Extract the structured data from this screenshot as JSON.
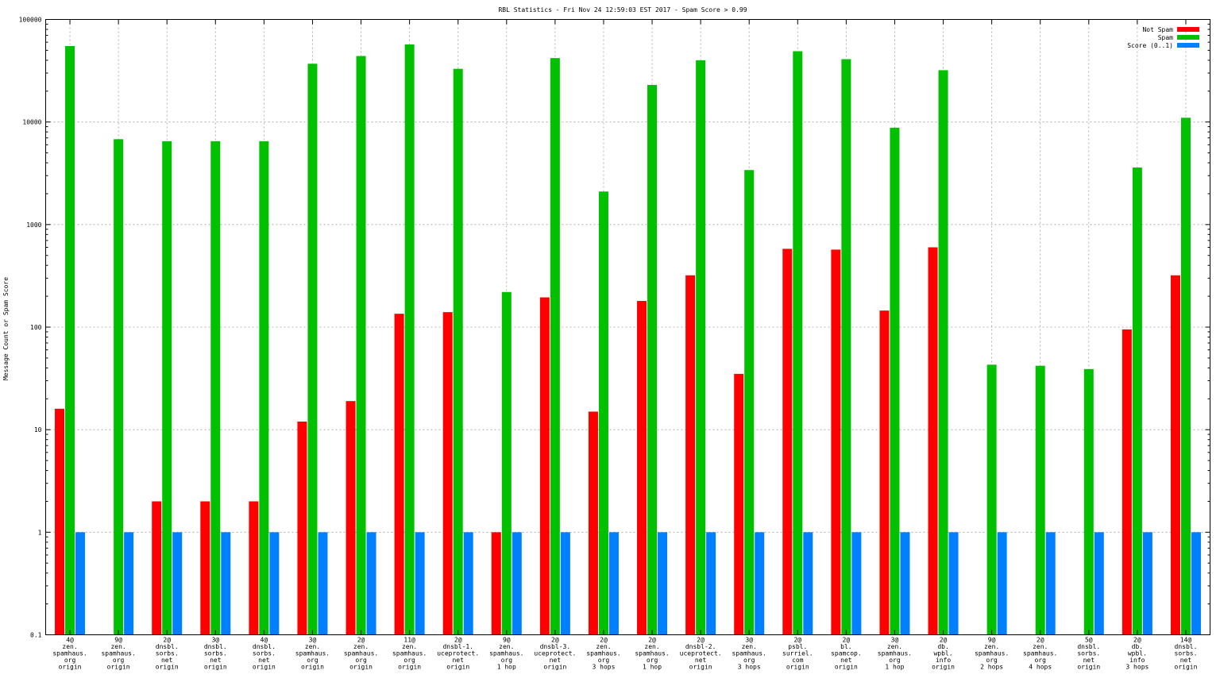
{
  "chart_data": {
    "type": "bar",
    "title": "RBL Statistics - Fri Nov 24 12:59:03 EST 2017 - Spam Score > 0.99",
    "xlabel": "",
    "ylabel": "Message Count or Spam Score",
    "yscale": "log",
    "ylim": [
      0.1,
      100000
    ],
    "grid": true,
    "legend_position": "top-right",
    "y_tick_labels": [
      "0.1",
      "1",
      "10",
      "100",
      "1000",
      "10000",
      "100000"
    ],
    "categories": [
      [
        "4@",
        "zen.",
        "spamhaus.",
        "org",
        "origin"
      ],
      [
        "9@",
        "zen.",
        "spamhaus.",
        "org",
        "origin"
      ],
      [
        "2@",
        "dnsbl.",
        "sorbs.",
        "net",
        "origin"
      ],
      [
        "3@",
        "dnsbl.",
        "sorbs.",
        "net",
        "origin"
      ],
      [
        "4@",
        "dnsbl.",
        "sorbs.",
        "net",
        "origin"
      ],
      [
        "3@",
        "zen.",
        "spamhaus.",
        "org",
        "origin"
      ],
      [
        "2@",
        "zen.",
        "spamhaus.",
        "org",
        "origin"
      ],
      [
        "11@",
        "zen.",
        "spamhaus.",
        "org",
        "origin"
      ],
      [
        "2@",
        "dnsbl-1.",
        "uceprotect.",
        "net",
        "origin"
      ],
      [
        "9@",
        "zen.",
        "spamhaus.",
        "org",
        "1 hop"
      ],
      [
        "2@",
        "dnsbl-3.",
        "uceprotect.",
        "net",
        "origin"
      ],
      [
        "2@",
        "zen.",
        "spamhaus.",
        "org",
        "3 hops"
      ],
      [
        "2@",
        "zen.",
        "spamhaus.",
        "org",
        "1 hop"
      ],
      [
        "2@",
        "dnsbl-2.",
        "uceprotect.",
        "net",
        "origin"
      ],
      [
        "3@",
        "zen.",
        "spamhaus.",
        "org",
        "3 hops"
      ],
      [
        "2@",
        "psbl.",
        "surriel.",
        "com",
        "origin"
      ],
      [
        "2@",
        "bl.",
        "spamcop.",
        "net",
        "origin"
      ],
      [
        "3@",
        "zen.",
        "spamhaus.",
        "org",
        "1 hop"
      ],
      [
        "2@",
        "db.",
        "wpbl.",
        "info",
        "origin"
      ],
      [
        "9@",
        "zen.",
        "spamhaus.",
        "org",
        "2 hops"
      ],
      [
        "2@",
        "zen.",
        "spamhaus.",
        "org",
        "4 hops"
      ],
      [
        "5@",
        "dnsbl.",
        "sorbs.",
        "net",
        "origin"
      ],
      [
        "2@",
        "db.",
        "wpbl.",
        "info",
        "3 hops"
      ],
      [
        "14@",
        "dnsbl.",
        "sorbs.",
        "net",
        "origin"
      ]
    ],
    "series": [
      {
        "name": "Not Spam",
        "color": "#ff0000",
        "values": [
          16,
          null,
          2,
          2,
          2,
          12,
          19,
          135,
          140,
          1,
          195,
          15,
          180,
          320,
          35,
          580,
          570,
          145,
          600,
          null,
          null,
          null,
          95,
          320
        ]
      },
      {
        "name": "Spam",
        "color": "#00c000",
        "values": [
          55000,
          6800,
          6500,
          6500,
          6500,
          37000,
          44000,
          57000,
          33000,
          220,
          42000,
          2100,
          23000,
          40000,
          3400,
          49000,
          41000,
          8800,
          32000,
          43,
          42,
          39,
          3600,
          11000
        ]
      },
      {
        "name": "Score (0..1)",
        "color": "#0080ff",
        "values": [
          1,
          1,
          1,
          1,
          1,
          1,
          1,
          1,
          1,
          1,
          1,
          1,
          1,
          1,
          1,
          1,
          1,
          1,
          1,
          1,
          1,
          1,
          1,
          1
        ]
      }
    ]
  }
}
